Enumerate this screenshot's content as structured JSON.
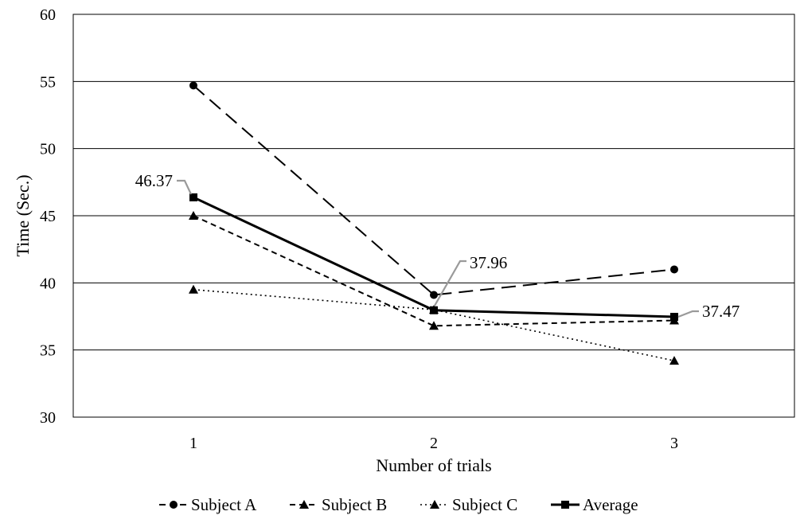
{
  "chart_data": {
    "type": "line",
    "title": "",
    "xlabel": "Number of trials",
    "ylabel": "Time (Sec.)",
    "ylim": [
      30,
      60
    ],
    "yticks": [
      "30",
      "35",
      "40",
      "45",
      "50",
      "55",
      "60"
    ],
    "categories": [
      "1",
      "2",
      "3"
    ],
    "grid": "horizontal",
    "legend_position": "bottom",
    "series": [
      {
        "name": "Subject A",
        "values": [
          54.7,
          39.1,
          41.0
        ],
        "marker": "circle",
        "dash": "long-dash"
      },
      {
        "name": "Subject B",
        "values": [
          45.0,
          36.8,
          37.2
        ],
        "marker": "triangle",
        "dash": "short-dash"
      },
      {
        "name": "Subject C",
        "values": [
          39.5,
          38.0,
          34.2
        ],
        "marker": "triangle",
        "dash": "dotted"
      },
      {
        "name": "Average",
        "values": [
          46.37,
          37.96,
          37.47
        ],
        "marker": "square",
        "dash": "solid"
      }
    ],
    "annotations": [
      {
        "series": "Average",
        "index": 0,
        "text": "46.37"
      },
      {
        "series": "Average",
        "index": 1,
        "text": "37.96"
      },
      {
        "series": "Average",
        "index": 2,
        "text": "37.47"
      }
    ]
  }
}
